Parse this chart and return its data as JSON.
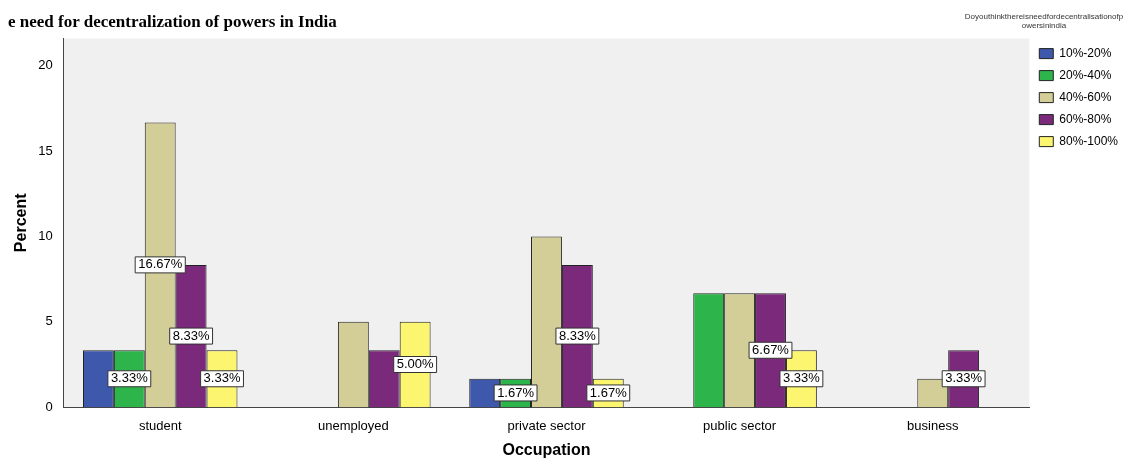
{
  "chart_data": {
    "type": "bar",
    "title": "e need for decentralization of powers in India",
    "xlabel": "Occupation",
    "ylabel": "Percent",
    "legend_title": "Doyouthinkthereisneedfordecentralisationofpowersinindia",
    "categories": [
      "student",
      "unemployed",
      "private sector",
      "public sector",
      "business"
    ],
    "series": [
      {
        "name": "10%-20%",
        "color": "#3e58ac",
        "values": [
          3.33,
          null,
          1.67,
          null,
          null
        ],
        "value_labels": [
          null,
          null,
          null,
          null,
          null
        ]
      },
      {
        "name": "20%-40%",
        "color": "#2db44a",
        "values": [
          3.33,
          null,
          1.67,
          6.67,
          null
        ],
        "value_labels": [
          "3.33%",
          null,
          "1.67%",
          null,
          null
        ]
      },
      {
        "name": "40%-60%",
        "color": "#d3ce97",
        "values": [
          16.67,
          5.0,
          10.0,
          6.67,
          1.67
        ],
        "value_labels": [
          "16.67%",
          null,
          null,
          null,
          null
        ]
      },
      {
        "name": "60%-80%",
        "color": "#7b2a7b",
        "values": [
          8.33,
          3.33,
          8.33,
          6.67,
          3.33
        ],
        "value_labels": [
          "8.33%",
          null,
          "8.33%",
          "6.67%",
          "3.33%"
        ]
      },
      {
        "name": "80%-100%",
        "color": "#fbf570",
        "values": [
          3.33,
          5.0,
          1.67,
          3.33,
          null
        ],
        "value_labels": [
          "3.33%",
          "5.00%",
          "1.67%",
          "3.33%",
          null
        ]
      }
    ],
    "ylim": [
      0,
      21.6
    ],
    "yticks": [
      0,
      5,
      10,
      15,
      20
    ],
    "grid": false,
    "legend": "top right"
  }
}
